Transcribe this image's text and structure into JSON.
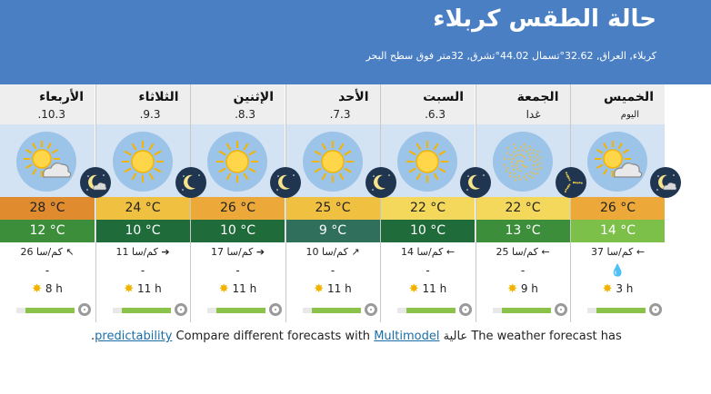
{
  "header": {
    "title": "حالة الطقس كربلاء",
    "subtitle": "كربلاء, العراق, 32.62°تسمال 44.02°تشرق, 32متر فوق سطح البحر"
  },
  "days": [
    {
      "name": "الأربعاء",
      "date": "10.3.",
      "icon": "partly-cloudy-icon",
      "tmax": "28 °C",
      "tmin": "12 °C",
      "tmax_color": "#e08b2e",
      "tmin_color": "#3c8e3a",
      "wind_arrow": "↖",
      "wind": "26 كم/سا",
      "precip": "-",
      "sun": "8 h",
      "predictability": 0.8
    },
    {
      "name": "الثلاثاء",
      "date": "9.3.",
      "icon": "sunny-icon",
      "tmax": "24 °C",
      "tmin": "10 °C",
      "tmax_color": "#f0c040",
      "tmin_color": "#1f6b3a",
      "wind_arrow": "➔",
      "wind": "11 كم/سا",
      "precip": "-",
      "sun": "11 h",
      "predictability": 0.8
    },
    {
      "name": "الإثنين",
      "date": "8.3.",
      "icon": "sunny-icon",
      "tmax": "26 °C",
      "tmin": "10 °C",
      "tmax_color": "#eda83a",
      "tmin_color": "#1f6b3a",
      "wind_arrow": "➔",
      "wind": "17 كم/سا",
      "precip": "-",
      "sun": "11 h",
      "predictability": 0.8
    },
    {
      "name": "الأحد",
      "date": "7.3.",
      "icon": "sunny-icon",
      "tmax": "25 °C",
      "tmin": "9 °C",
      "tmax_color": "#f0c040",
      "tmin_color": "#2f6f5c",
      "wind_arrow": "↗",
      "wind": "10 كم/سا",
      "precip": "-",
      "sun": "11 h",
      "predictability": 0.8
    },
    {
      "name": "السبت",
      "date": "6.3.",
      "icon": "sunny-icon",
      "tmax": "22 °C",
      "tmin": "10 °C",
      "tmax_color": "#f4d85c",
      "tmin_color": "#1f6b3a",
      "wind_arrow": "←",
      "wind": "14 كم/سا",
      "precip": "-",
      "sun": "11 h",
      "predictability": 0.8
    },
    {
      "name": "الجمعة",
      "date": "غدا",
      "icon": "hazy-icon",
      "tmax": "22 °C",
      "tmin": "13 °C",
      "tmax_color": "#f4d85c",
      "tmin_color": "#3c8e3a",
      "wind_arrow": "←",
      "wind": "25 كم/سا",
      "precip": "-",
      "sun": "9 h",
      "predictability": 0.8
    },
    {
      "name": "الخميس",
      "date": "اليوم",
      "icon": "partly-cloudy-icon",
      "tmax": "26 °C",
      "tmin": "14 °C",
      "tmax_color": "#eda83a",
      "tmin_color": "#7cc04a",
      "wind_arrow": "←",
      "wind": "37 كم/سا",
      "precip": "drop",
      "sun": "3 h",
      "predictability": 0.8
    }
  ],
  "moons": [
    "moon-cloud-icon",
    "moon-icon",
    "moon-icon",
    "moon-icon",
    "moon-icon",
    "moon-stars-icon",
    "moon-cloud-icon"
  ],
  "footer": {
    "text_before": "The weather forecast has ",
    "high": "عالية",
    "text_mid": " ",
    "link_multimodel": "Multimodel",
    "text_compare": " Compare different forecasts with ",
    "link_predictability": "predictability",
    "text_end": "."
  }
}
